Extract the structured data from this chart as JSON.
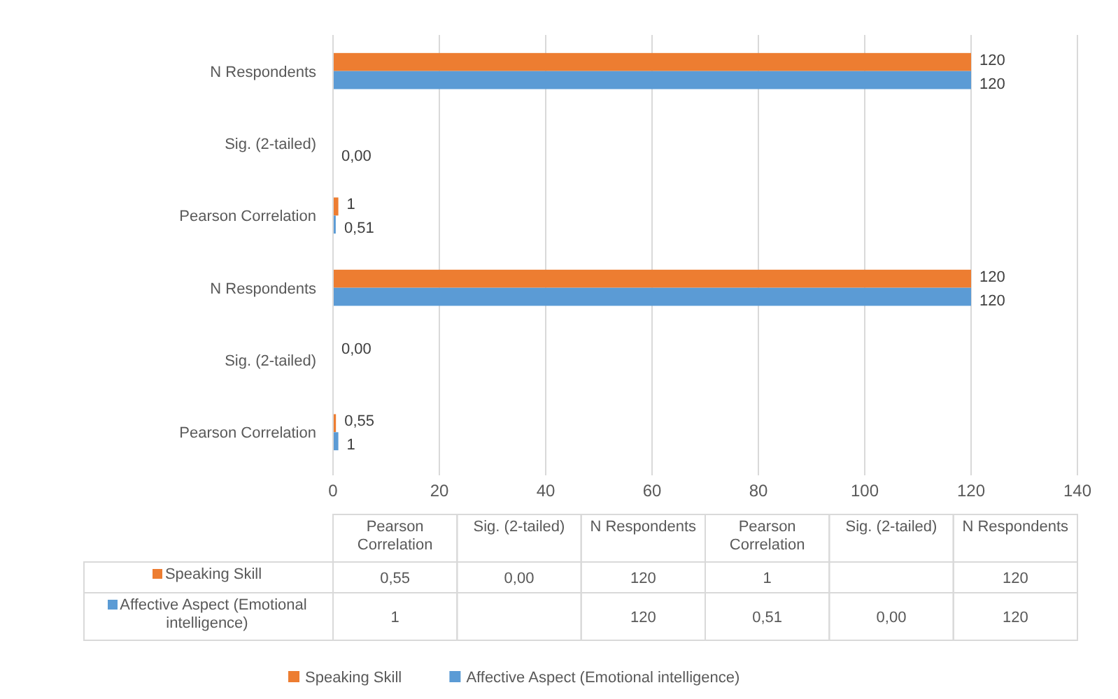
{
  "chart_data": {
    "type": "bar",
    "orientation": "horizontal",
    "categories": [
      "N Respondents",
      "Sig. (2-tailed)",
      "Pearson Correlation",
      "N Respondents",
      "Sig. (2-tailed)",
      "Pearson Correlation"
    ],
    "series": [
      {
        "name": "Speaking Skill",
        "color": "#ed7d31",
        "values": [
          120,
          null,
          1,
          120,
          0,
          0.55
        ],
        "value_labels": [
          "120",
          null,
          "1",
          "120",
          "0,00",
          "0,55"
        ]
      },
      {
        "name": "Affective Aspect (Emotional intelligence)",
        "color": "#5b9bd5",
        "values": [
          120,
          0,
          0.51,
          120,
          null,
          1
        ],
        "value_labels": [
          "120",
          "0,00",
          "0,51",
          "120",
          null,
          "1"
        ]
      }
    ],
    "xlim": [
      0,
      140
    ],
    "xticks": [
      0,
      20,
      40,
      60,
      80,
      100,
      120,
      140
    ],
    "grid": "x",
    "legend": "bottom"
  }
}
